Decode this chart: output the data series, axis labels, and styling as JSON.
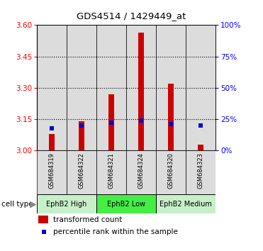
{
  "title": "GDS4514 / 1429449_at",
  "samples": [
    "GSM684319",
    "GSM684322",
    "GSM684321",
    "GSM684324",
    "GSM684320",
    "GSM684323"
  ],
  "transformed_count": [
    3.08,
    3.14,
    3.27,
    3.565,
    3.32,
    3.03
  ],
  "percentile_vals": [
    18,
    20,
    22,
    24,
    21,
    20
  ],
  "ylim_left": [
    3.0,
    3.6
  ],
  "ylim_right": [
    0,
    100
  ],
  "yticks_left": [
    3.0,
    3.15,
    3.3,
    3.45,
    3.6
  ],
  "yticks_right": [
    0,
    25,
    50,
    75,
    100
  ],
  "ytick_labels_right": [
    "0%",
    "25%",
    "50%",
    "75%",
    "100%"
  ],
  "bar_color": "#CC0000",
  "percentile_color": "#0000CC",
  "bg_color": "#DCDCDC",
  "ct_groups": [
    {
      "label": "EphB2 High",
      "start": 0,
      "end": 2,
      "color": "#c8f0c8"
    },
    {
      "label": "EphB2 Low",
      "start": 2,
      "end": 4,
      "color": "#44ee44"
    },
    {
      "label": "EphB2 Medium",
      "start": 4,
      "end": 6,
      "color": "#c8f0c8"
    }
  ],
  "legend_tc": "transformed count",
  "legend_pr": "percentile rank within the sample",
  "bar_width": 0.18
}
